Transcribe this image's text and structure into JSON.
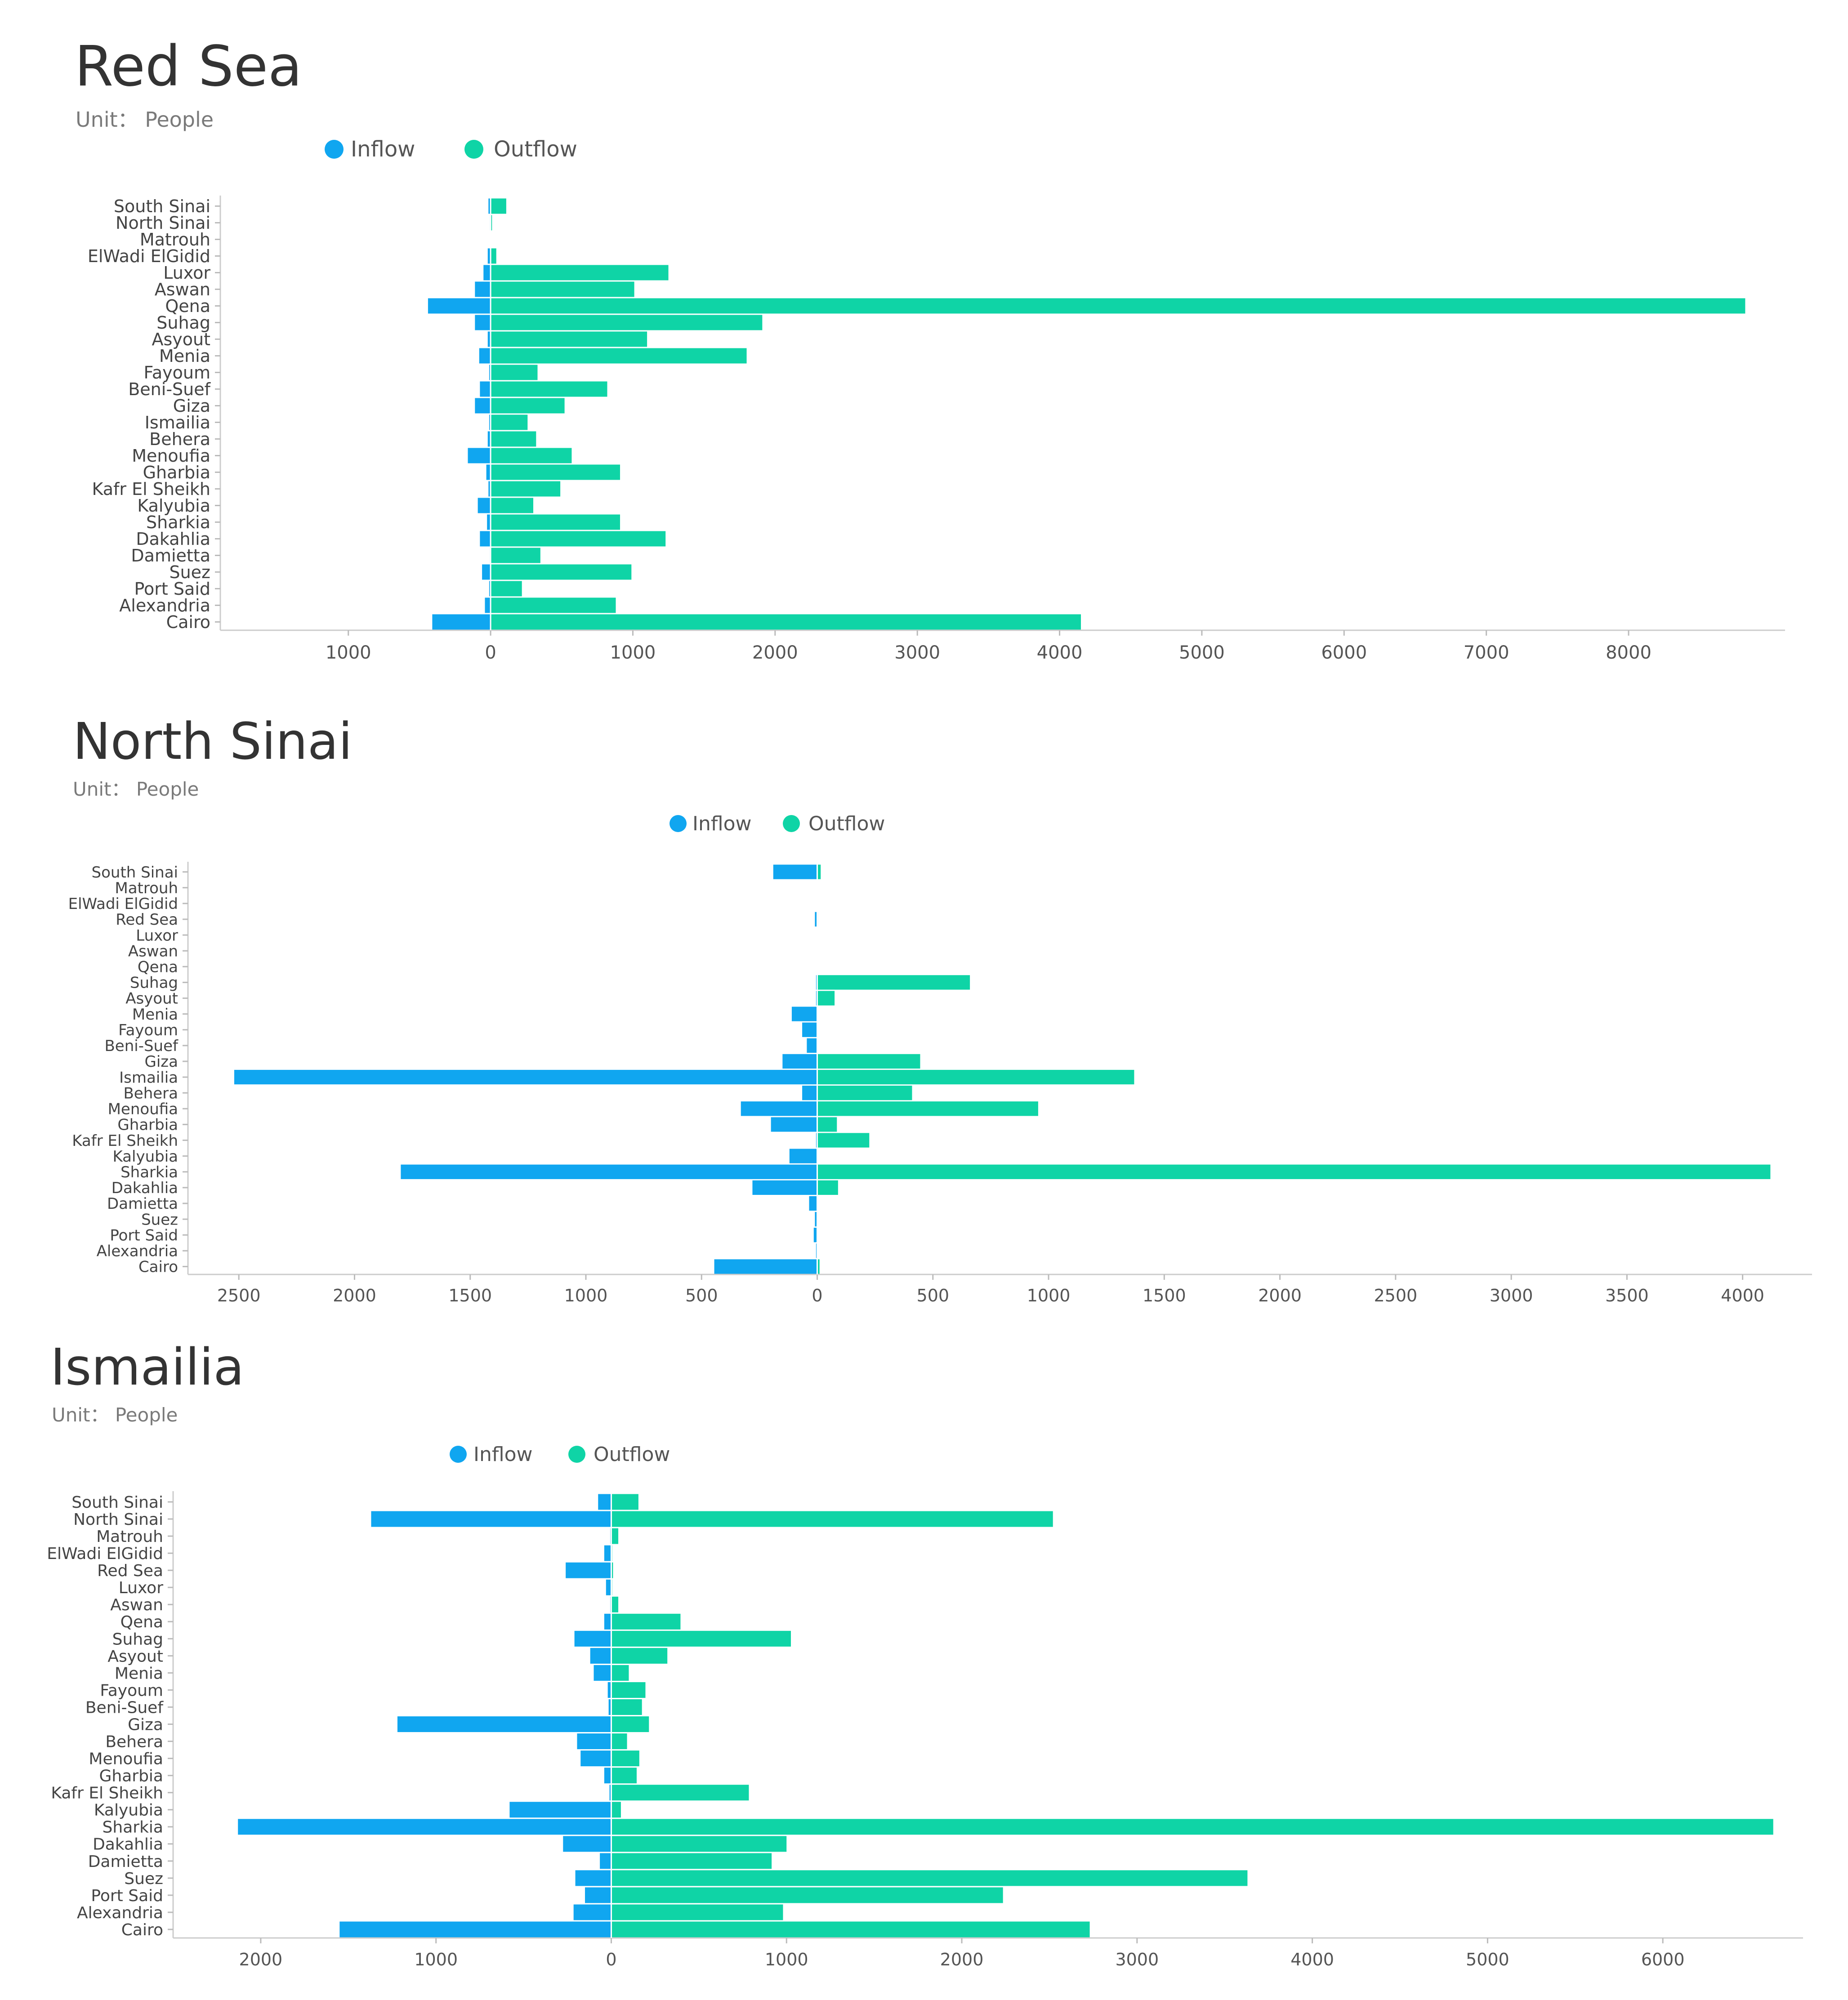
{
  "colors": {
    "inflow": "#10a6f0",
    "outflow": "#0fd4a6",
    "text": "#333333",
    "muted": "#7a7a7a",
    "axis": "#cccccc"
  },
  "chart_data": [
    {
      "type": "bar",
      "orientation": "horizontal-diverging",
      "title": "Red Sea",
      "subtitle": "Unit： People",
      "legend": [
        "Inflow",
        "Outflow"
      ],
      "legend_position": "top",
      "categories": [
        "South Sinai",
        "North Sinai",
        "Matrouh",
        "ElWadi ElGidid",
        "Luxor",
        "Aswan",
        "Qena",
        "Suhag",
        "Asyout",
        "Menia",
        "Fayoum",
        "Beni-Suef",
        "Giza",
        "Ismailia",
        "Behera",
        "Menoufia",
        "Gharbia",
        "Kafr El Sheikh",
        "Kalyubia",
        "Sharkia",
        "Dakahlia",
        "Damietta",
        "Suez",
        "Port Said",
        "Alexandria",
        "Cairo"
      ],
      "series": [
        {
          "name": "Inflow",
          "values": [
            15,
            5,
            0,
            20,
            50,
            110,
            440,
            110,
            20,
            80,
            10,
            75,
            110,
            10,
            20,
            160,
            30,
            15,
            90,
            25,
            75,
            5,
            60,
            10,
            40,
            410
          ]
        },
        {
          "name": "Outflow",
          "values": [
            110,
            10,
            0,
            40,
            1250,
            1010,
            8820,
            1910,
            1100,
            1800,
            330,
            820,
            520,
            260,
            320,
            570,
            910,
            490,
            300,
            910,
            1230,
            350,
            990,
            220,
            880,
            4150
          ]
        }
      ],
      "xlim": [
        -1900,
        9100
      ],
      "x_ticks": [
        -1000,
        0,
        1000,
        2000,
        3000,
        4000,
        5000,
        6000,
        7000,
        8000
      ],
      "x_tick_labels": [
        "1000",
        "0",
        "1000",
        "2000",
        "3000",
        "4000",
        "5000",
        "6000",
        "7000",
        "8000"
      ],
      "xlabel": "",
      "ylabel": ""
    },
    {
      "type": "bar",
      "orientation": "horizontal-diverging",
      "title": "North Sinai",
      "subtitle": "Unit： People",
      "legend": [
        "Inflow",
        "Outflow"
      ],
      "legend_position": "top",
      "categories": [
        "South Sinai",
        "Matrouh",
        "ElWadi ElGidid",
        "Red Sea",
        "Luxor",
        "Aswan",
        "Qena",
        "Suhag",
        "Asyout",
        "Menia",
        "Fayoum",
        "Beni-Suef",
        "Giza",
        "Ismailia",
        "Behera",
        "Menoufia",
        "Gharbia",
        "Kafr El Sheikh",
        "Kalyubia",
        "Sharkia",
        "Dakahlia",
        "Damietta",
        "Suez",
        "Port Said",
        "Alexandria",
        "Cairo"
      ],
      "series": [
        {
          "name": "Inflow",
          "values": [
            190,
            0,
            0,
            10,
            2,
            0,
            0,
            5,
            5,
            110,
            65,
            45,
            150,
            2520,
            65,
            330,
            200,
            5,
            120,
            1800,
            280,
            35,
            10,
            15,
            5,
            445
          ]
        },
        {
          "name": "Outflow",
          "values": [
            15,
            0,
            0,
            3,
            2,
            0,
            0,
            660,
            75,
            0,
            0,
            0,
            445,
            1370,
            410,
            955,
            85,
            225,
            0,
            4120,
            90,
            0,
            0,
            0,
            0,
            10
          ]
        }
      ],
      "xlim": [
        -2720,
        4300
      ],
      "x_ticks": [
        -2500,
        -2000,
        -1500,
        -1000,
        -500,
        0,
        500,
        1000,
        1500,
        2000,
        2500,
        3000,
        3500,
        4000
      ],
      "x_tick_labels": [
        "2500",
        "2000",
        "1500",
        "1000",
        "500",
        "0",
        "500",
        "1000",
        "1500",
        "2000",
        "2500",
        "3000",
        "3500",
        "4000"
      ],
      "xlabel": "",
      "ylabel": ""
    },
    {
      "type": "bar",
      "orientation": "horizontal-diverging",
      "title": "Ismailia",
      "subtitle": "Unit： People",
      "legend": [
        "Inflow",
        "Outflow"
      ],
      "legend_position": "top",
      "categories": [
        "South Sinai",
        "North Sinai",
        "Matrouh",
        "ElWadi ElGidid",
        "Red Sea",
        "Luxor",
        "Aswan",
        "Qena",
        "Suhag",
        "Asyout",
        "Menia",
        "Fayoum",
        "Beni-Suef",
        "Giza",
        "Behera",
        "Menoufia",
        "Gharbia",
        "Kafr El Sheikh",
        "Kalyubia",
        "Sharkia",
        "Dakahlia",
        "Damietta",
        "Suez",
        "Port Said",
        "Alexandria",
        "Cairo"
      ],
      "series": [
        {
          "name": "Inflow",
          "values": [
            75,
            1370,
            5,
            40,
            260,
            30,
            5,
            40,
            210,
            120,
            100,
            20,
            15,
            1220,
            195,
            175,
            40,
            10,
            580,
            2130,
            275,
            65,
            205,
            150,
            215,
            1550
          ]
        },
        {
          "name": "Outflow",
          "values": [
            155,
            2520,
            40,
            5,
            10,
            5,
            40,
            395,
            1025,
            320,
            100,
            195,
            175,
            215,
            90,
            160,
            145,
            785,
            55,
            6630,
            1000,
            915,
            3630,
            2235,
            980,
            2730
          ]
        }
      ],
      "xlim": [
        -2500,
        6800
      ],
      "x_ticks": [
        -2000,
        -1000,
        0,
        1000,
        2000,
        3000,
        4000,
        5000,
        6000
      ],
      "x_tick_labels": [
        "2000",
        "1000",
        "0",
        "1000",
        "2000",
        "3000",
        "4000",
        "5000",
        "6000"
      ],
      "xlabel": "",
      "ylabel": ""
    }
  ]
}
